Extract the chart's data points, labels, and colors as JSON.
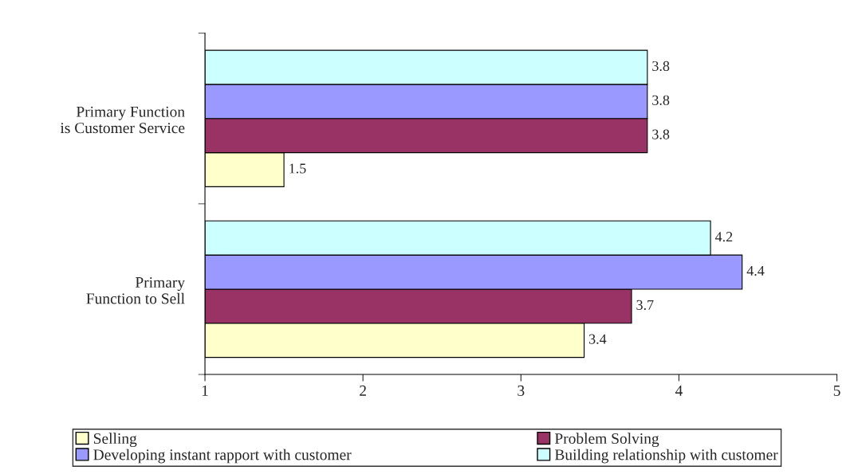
{
  "chart_data": {
    "type": "bar",
    "orientation": "horizontal",
    "categories": [
      "Primary Function is Customer Service",
      "Primary Function to Sell"
    ],
    "series": [
      {
        "name": "Selling",
        "color": "#ffffcc",
        "values": [
          1.5,
          3.4
        ]
      },
      {
        "name": "Problem Solving",
        "color": "#993366",
        "values": [
          3.8,
          3.7
        ]
      },
      {
        "name": "Developing instant rapport with customer",
        "color": "#9999ff",
        "values": [
          3.8,
          4.4
        ]
      },
      {
        "name": "Building relationship with customer",
        "color": "#ccffff",
        "values": [
          3.8,
          4.2
        ]
      }
    ],
    "xlim": [
      1,
      5
    ],
    "xticks": [
      1,
      2,
      3,
      4,
      5
    ],
    "grid": false,
    "legend": "bottom",
    "data_labels": true
  }
}
